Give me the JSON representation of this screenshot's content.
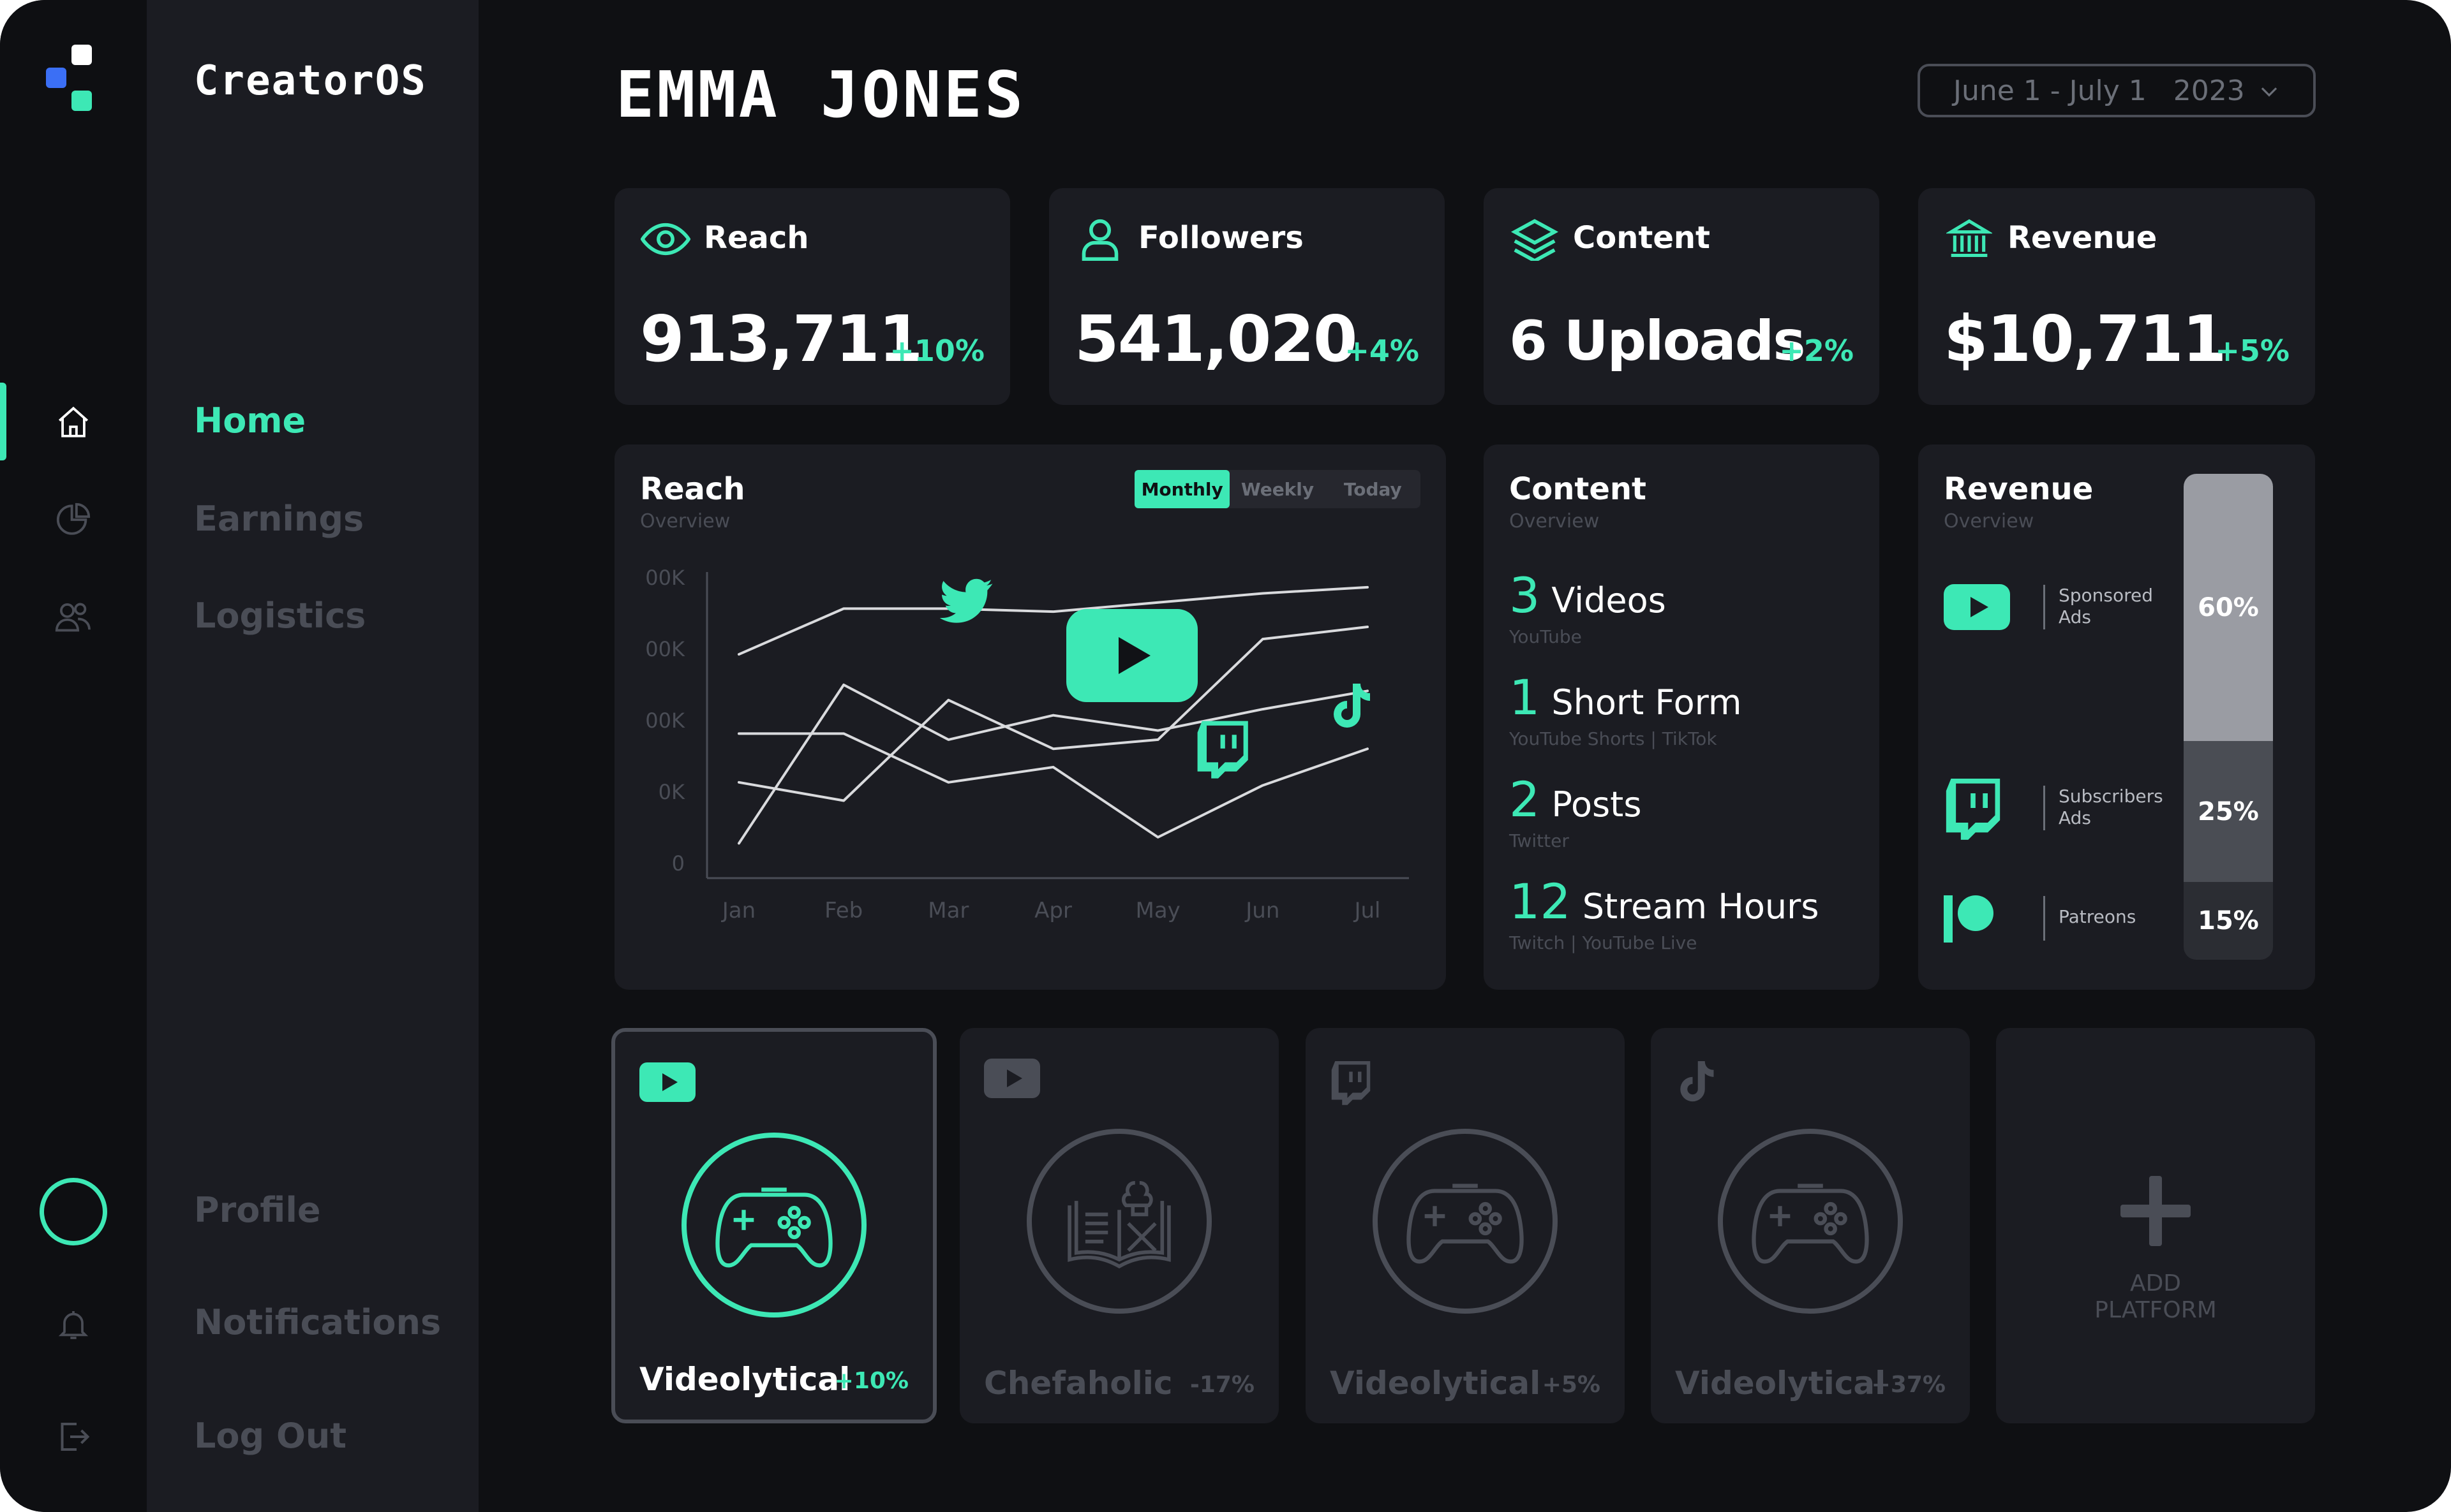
{
  "app": {
    "brand": "CreatorOS"
  },
  "colors": {
    "accent": "#3DE8B5",
    "background": "#0F1013",
    "panel": "#1B1C22",
    "muted": "#4A4D56"
  },
  "nav": {
    "home": "Home",
    "earnings": "Earnings",
    "logistics": "Logistics",
    "profile": "Profile",
    "notifications": "Notifications",
    "logout": "Log Out"
  },
  "header": {
    "name": "EMMA JONES",
    "date_range": "June 1 - July 1   2023"
  },
  "stats": [
    {
      "label": "Reach",
      "value": "913,711",
      "change": "+10%",
      "icon": "eye-icon"
    },
    {
      "label": "Followers",
      "value": "541,020",
      "change": "+4%",
      "icon": "user-icon"
    },
    {
      "label": "Content",
      "value": "6 Uploads",
      "change": "+2%",
      "icon": "layers-icon"
    },
    {
      "label": "Revenue",
      "value": "$10,711",
      "change": "+5%",
      "icon": "bank-icon"
    }
  ],
  "reach_chart": {
    "title": "Reach",
    "subtitle": "Overview",
    "toggle": [
      "Monthly",
      "Weekly",
      "Today"
    ],
    "active_toggle": "Monthly"
  },
  "chart_data": {
    "type": "line",
    "title": "Reach",
    "categories": [
      "Jan",
      "Feb",
      "Mar",
      "Apr",
      "May",
      "Jun",
      "Jul"
    ],
    "y_tick_labels": [
      "00K",
      "00K",
      "00K",
      "0K",
      "0"
    ],
    "ylim": [
      0,
      100
    ],
    "series": [
      {
        "name": "Twitter",
        "icon": "twitter-icon",
        "values": [
          73,
          88,
          88,
          87,
          90,
          93,
          95
        ]
      },
      {
        "name": "YouTube",
        "icon": "youtube-icon",
        "values": [
          31,
          25,
          58,
          42,
          45,
          78,
          82
        ]
      },
      {
        "name": "Twitch",
        "icon": "twitch-icon",
        "values": [
          47,
          47,
          31,
          36,
          13,
          30,
          42
        ]
      },
      {
        "name": "TikTok",
        "icon": "tiktok-icon",
        "values": [
          11,
          63,
          45,
          53,
          48,
          55,
          61
        ]
      }
    ]
  },
  "content": {
    "title": "Content",
    "subtitle": "Overview",
    "items": [
      {
        "num": "3",
        "label": "Videos",
        "sub": "YouTube"
      },
      {
        "num": "1",
        "label": "Short Form",
        "sub": "YouTube Shorts | TikTok"
      },
      {
        "num": "2",
        "label": "Posts",
        "sub": "Twitter"
      },
      {
        "num": "12",
        "label": "Stream Hours",
        "sub": "Twitch | YouTube Live"
      }
    ]
  },
  "revenue": {
    "title": "Revenue",
    "subtitle": "Overview",
    "rows": [
      {
        "icon": "youtube-icon",
        "label": "Sponsored Ads",
        "share": "60%",
        "share_value": 60
      },
      {
        "icon": "twitch-icon",
        "label": "Subscribers Ads",
        "share": "25%",
        "share_value": 25
      },
      {
        "icon": "patreon-icon",
        "label": "Patreons",
        "share": "15%",
        "share_value": 15
      }
    ]
  },
  "platforms": [
    {
      "platform_icon": "youtube-icon",
      "channel_icon": "gamepad-icon",
      "name": "Videolytical",
      "change": "+10%",
      "selected": true
    },
    {
      "platform_icon": "youtube-icon",
      "channel_icon": "cookbook-icon",
      "name": "Chefaholic",
      "change": "-17%",
      "selected": false
    },
    {
      "platform_icon": "twitch-icon",
      "channel_icon": "gamepad-icon",
      "name": "Videolytical",
      "change": "+5%",
      "selected": false
    },
    {
      "platform_icon": "tiktok-icon",
      "channel_icon": "gamepad-icon",
      "name": "Videolytical",
      "change": "+37%",
      "selected": false
    }
  ],
  "add_platform": {
    "line1": "ADD",
    "line2": "PLATFORM"
  }
}
